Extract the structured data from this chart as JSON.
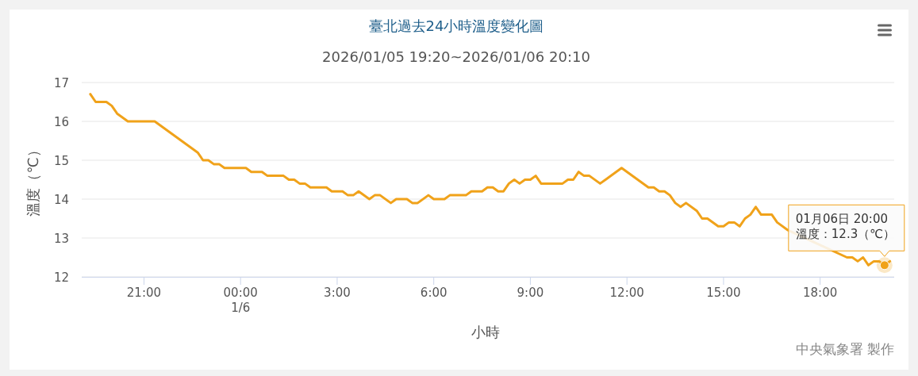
{
  "chart_data": {
    "type": "line",
    "title": "臺北過去24小時溫度變化圖",
    "subtitle": "2026/01/05 19:20~2026/01/06 20:10",
    "xlabel": "小時",
    "ylabel": "溫度（℃）",
    "x": [
      "2026-01-05T19:20",
      "2026-01-05T19:30",
      "2026-01-05T19:50",
      "2026-01-05T20:00",
      "2026-01-05T20:10",
      "2026-01-05T20:30",
      "2026-01-05T21:20",
      "2026-01-05T22:40",
      "2026-01-05T22:50",
      "2026-01-05T23:00",
      "2026-01-05T23:10",
      "2026-01-05T23:20",
      "2026-01-05T23:30",
      "2026-01-06T00:10",
      "2026-01-06T00:20",
      "2026-01-06T00:40",
      "2026-01-06T00:50",
      "2026-01-06T01:20",
      "2026-01-06T01:30",
      "2026-01-06T01:40",
      "2026-01-06T01:50",
      "2026-01-06T02:00",
      "2026-01-06T02:10",
      "2026-01-06T02:40",
      "2026-01-06T02:50",
      "2026-01-06T03:10",
      "2026-01-06T03:20",
      "2026-01-06T03:30",
      "2026-01-06T03:40",
      "2026-01-06T04:00",
      "2026-01-06T04:10",
      "2026-01-06T04:20",
      "2026-01-06T04:40",
      "2026-01-06T04:50",
      "2026-01-06T05:10",
      "2026-01-06T05:20",
      "2026-01-06T05:30",
      "2026-01-06T05:50",
      "2026-01-06T06:00",
      "2026-01-06T06:20",
      "2026-01-06T06:30",
      "2026-01-06T07:00",
      "2026-01-06T07:10",
      "2026-01-06T07:30",
      "2026-01-06T07:40",
      "2026-01-06T07:50",
      "2026-01-06T08:00",
      "2026-01-06T08:10",
      "2026-01-06T08:20",
      "2026-01-06T08:30",
      "2026-01-06T08:40",
      "2026-01-06T08:50",
      "2026-01-06T09:00",
      "2026-01-06T09:10",
      "2026-01-06T09:20",
      "2026-01-06T10:00",
      "2026-01-06T10:10",
      "2026-01-06T10:20",
      "2026-01-06T10:30",
      "2026-01-06T10:40",
      "2026-01-06T10:50",
      "2026-01-06T11:10",
      "2026-01-06T11:50",
      "2026-01-06T12:40",
      "2026-01-06T12:50",
      "2026-01-06T13:00",
      "2026-01-06T13:10",
      "2026-01-06T13:20",
      "2026-01-06T13:30",
      "2026-01-06T13:40",
      "2026-01-06T13:50",
      "2026-01-06T14:10",
      "2026-01-06T14:20",
      "2026-01-06T14:30",
      "2026-01-06T14:50",
      "2026-01-06T15:00",
      "2026-01-06T15:10",
      "2026-01-06T15:20",
      "2026-01-06T15:30",
      "2026-01-06T15:40",
      "2026-01-06T15:50",
      "2026-01-06T16:00",
      "2026-01-06T16:10",
      "2026-01-06T16:30",
      "2026-01-06T16:40",
      "2026-01-06T17:00",
      "2026-01-06T18:50",
      "2026-01-06T19:00",
      "2026-01-06T19:10",
      "2026-01-06T19:20",
      "2026-01-06T19:30",
      "2026-01-06T19:40",
      "2026-01-06T19:50",
      "2026-01-06T20:00",
      "2026-01-06T20:10"
    ],
    "series": [
      {
        "color": "#f0a21a",
        "values": [
          16.7,
          16.5,
          16.5,
          16.4,
          16.2,
          16.0,
          16.0,
          15.2,
          15.0,
          15.0,
          14.9,
          14.9,
          14.8,
          14.8,
          14.7,
          14.7,
          14.6,
          14.6,
          14.5,
          14.5,
          14.4,
          14.4,
          14.3,
          14.3,
          14.2,
          14.2,
          14.1,
          14.1,
          14.2,
          14.0,
          14.1,
          14.1,
          13.9,
          14.0,
          14.0,
          13.9,
          13.9,
          14.1,
          14.0,
          14.0,
          14.1,
          14.1,
          14.2,
          14.2,
          14.3,
          14.3,
          14.2,
          14.2,
          14.4,
          14.5,
          14.4,
          14.5,
          14.5,
          14.6,
          14.4,
          14.4,
          14.5,
          14.5,
          14.7,
          14.6,
          14.6,
          14.4,
          14.8,
          14.3,
          14.3,
          14.2,
          14.2,
          14.1,
          13.9,
          13.8,
          13.9,
          13.7,
          13.5,
          13.5,
          13.3,
          13.3,
          13.4,
          13.4,
          13.3,
          13.5,
          13.6,
          13.8,
          13.6,
          13.6,
          13.4,
          13.2,
          12.5,
          12.5,
          12.4,
          12.5,
          12.3,
          12.4,
          12.4,
          12.3,
          12.4
        ]
      }
    ],
    "xlim": [
      "2026-01-05T19:04",
      "2026-01-06T20:18"
    ],
    "xticks": [
      {
        "value": "2026-01-05T21:00",
        "label": "21:00"
      },
      {
        "value": "2026-01-06T00:00",
        "label": "00:00\n1/6"
      },
      {
        "value": "2026-01-06T03:00",
        "label": "3:00"
      },
      {
        "value": "2026-01-06T06:00",
        "label": "6:00"
      },
      {
        "value": "2026-01-06T09:00",
        "label": "9:00"
      },
      {
        "value": "2026-01-06T12:00",
        "label": "12:00"
      },
      {
        "value": "2026-01-06T15:00",
        "label": "15:00"
      },
      {
        "value": "2026-01-06T18:00",
        "label": "18:00"
      }
    ],
    "ylim": [
      12,
      17
    ],
    "yticks": [
      12,
      13,
      14,
      15,
      16,
      17
    ],
    "grid": "y",
    "marker": "none",
    "line_style": "solid",
    "annotations": [
      {
        "text": "01月06日 20:00\n溫度：12.3（℃）",
        "x": "2026-01-06T20:00",
        "y": 12.3
      },
      "中央氣象署 製作"
    ]
  }
}
